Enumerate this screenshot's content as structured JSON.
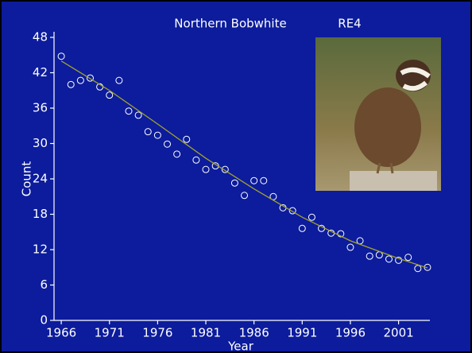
{
  "chart_data": {
    "type": "scatter",
    "title": "Northern Bobwhite",
    "subtitle": "RE4",
    "x_label": "Year",
    "y_label": "Count",
    "xlim": [
      1965.25,
      2004.25
    ],
    "ylim": [
      0,
      48
    ],
    "xticks": [
      1966,
      1971,
      1976,
      1981,
      1986,
      1991,
      1996,
      2001
    ],
    "yticks": [
      0,
      6,
      12,
      18,
      24,
      30,
      36,
      42,
      48
    ],
    "series": [
      {
        "type": "scatter",
        "color": "#ffffff",
        "x": [
          1966,
          1967,
          1968,
          1969,
          1970,
          1971,
          1972,
          1973,
          1974,
          1975,
          1976,
          1977,
          1978,
          1979,
          1980,
          1981,
          1982,
          1983,
          1984,
          1985,
          1986,
          1987,
          1988,
          1989,
          1990,
          1991,
          1992,
          1993,
          1994,
          1995,
          1996,
          1997,
          1998,
          1999,
          2000,
          2001,
          2002,
          2003,
          2004
        ],
        "values": [
          44.8,
          40.0,
          40.7,
          41.1,
          39.6,
          38.2,
          40.7,
          35.5,
          34.8,
          32.0,
          31.4,
          29.9,
          28.2,
          30.7,
          27.2,
          25.6,
          26.2,
          25.6,
          23.3,
          21.2,
          23.7,
          23.7,
          21.0,
          19.1,
          18.6,
          15.6,
          17.5,
          15.6,
          14.8,
          14.7,
          12.4,
          13.5,
          10.9,
          11.1,
          10.4,
          10.2,
          10.7,
          8.8,
          9.0
        ]
      },
      {
        "type": "line",
        "color": "#a3a32a",
        "x": [
          1966,
          1971,
          1976,
          1981,
          1986,
          1991,
          1996,
          2001,
          2004
        ],
        "values": [
          44.0,
          39.0,
          33.3,
          27.5,
          22.3,
          17.5,
          13.5,
          10.5,
          8.9
        ]
      }
    ]
  }
}
